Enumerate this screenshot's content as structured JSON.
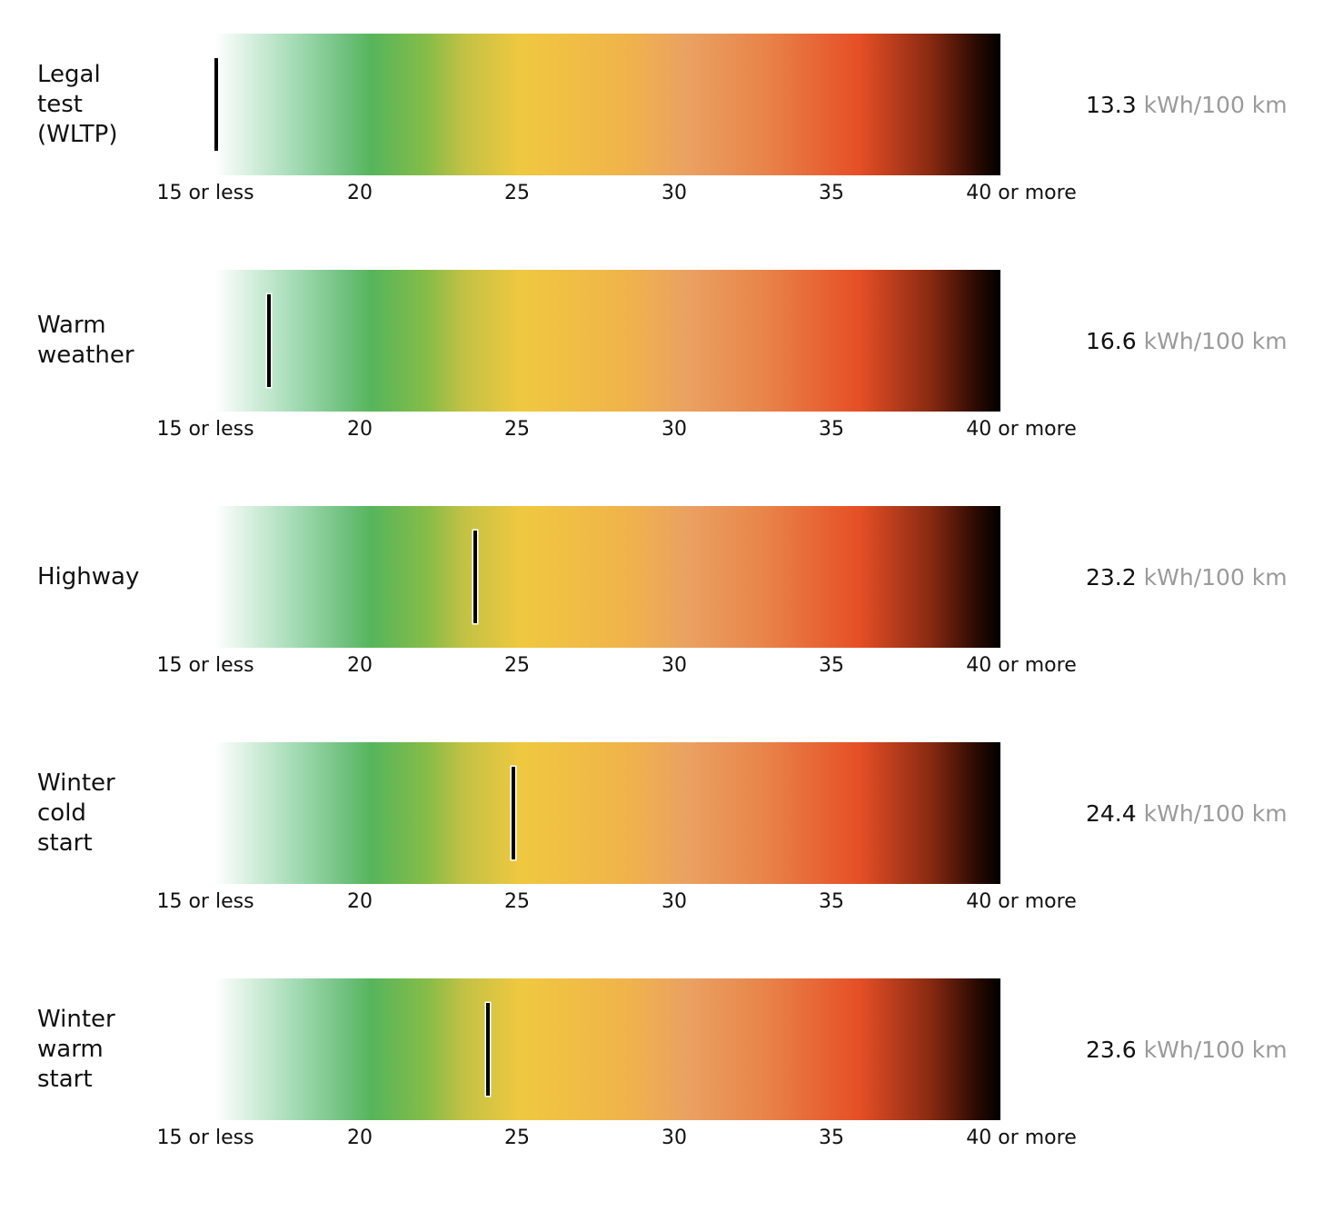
{
  "chart_data": {
    "type": "bar",
    "unit": "kWh/100 km",
    "axis": {
      "min": 15,
      "max": 40,
      "ticks": [
        {
          "value": 15,
          "label": "15 or less"
        },
        {
          "value": 20,
          "label": "20"
        },
        {
          "value": 25,
          "label": "25"
        },
        {
          "value": 30,
          "label": "30"
        },
        {
          "value": 35,
          "label": "35"
        },
        {
          "value": 40,
          "label": "40 or more"
        }
      ]
    },
    "colors": [
      "#ffffff",
      "#56b55b",
      "#f0c840",
      "#e64f26",
      "#000000"
    ],
    "rows": [
      {
        "label": "Legal\ntest\n(WLTP)",
        "value": 13.3,
        "value_text": "13.3"
      },
      {
        "label": "Warm\nweather",
        "value": 16.6,
        "value_text": "16.6"
      },
      {
        "label": "Highway",
        "value": 23.2,
        "value_text": "23.2"
      },
      {
        "label": "Winter\ncold\nstart",
        "value": 24.4,
        "value_text": "24.4"
      },
      {
        "label": "Winter\nwarm\nstart",
        "value": 23.6,
        "value_text": "23.6"
      }
    ]
  }
}
